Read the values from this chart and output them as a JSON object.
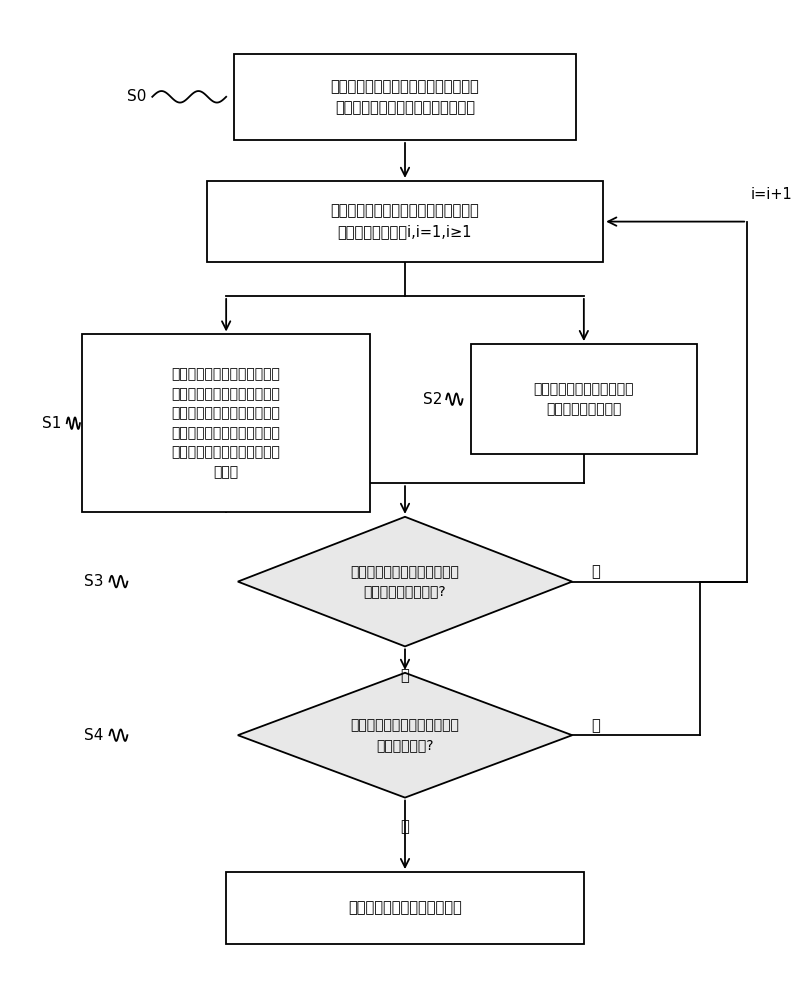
{
  "bg_color": "#ffffff",
  "box_fc": "#ffffff",
  "box_ec": "#000000",
  "diamond_fc": "#e8e8e8",
  "arrow_color": "#000000",
  "text_color": "#000000",
  "s0_text": "建立不同的发动机转速和喷油量与排气\n温度传感器的标定值之间的对应关系",
  "loop_text": "针对连续的多个第一预设长度的时间段\n中的每一个时间段i,i=1,i≥1",
  "s1_text": "根据发动机转速和喷油量与时\n间的对应关系及所述不同的发\n动机转速和喷油量与排气温度\n传感器的标定值之间的对应关\n系确定在该时间段内标定值的\n平均值",
  "s2_text": "计算该时间段内排气温度传\n感器测量值的平均值",
  "s3_text": "判断两个平均值的差值的绝对\n值是否大于预设阈值?",
  "s4_text": "大于预设阈值的时间段的个数\n大于预设个数?",
  "end_text": "判定所述排气温度传感器失效",
  "yes1_text": "是",
  "yes2_text": "是",
  "no1_text": "否",
  "no2_text": "否",
  "loop_label_text": "i=i+1",
  "s0_label": "S0",
  "s1_label": "S1",
  "s2_label": "S2",
  "s3_label": "S3",
  "s4_label": "S4"
}
